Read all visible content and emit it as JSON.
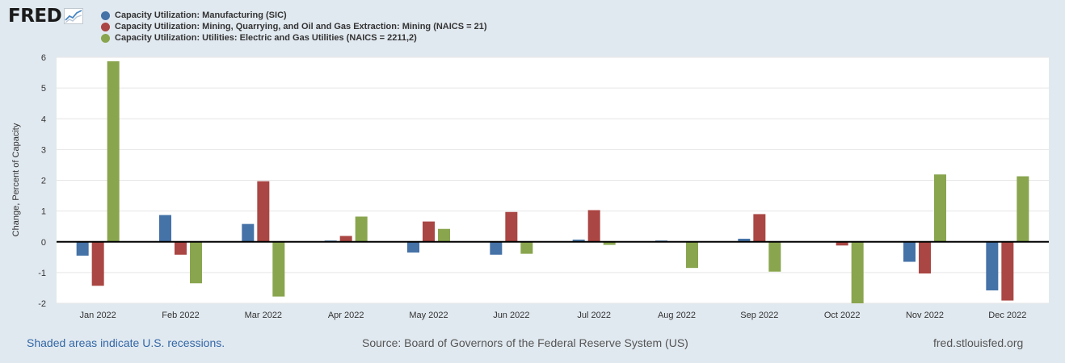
{
  "logo": {
    "text": "FRED"
  },
  "footer": {
    "recession_note": "Shaded areas indicate U.S. recessions.",
    "source": "Source: Board of Governors of the Federal Reserve System (US)",
    "site": "fred.stlouisfed.org"
  },
  "chart_data": {
    "type": "bar",
    "title": "",
    "xlabel": "",
    "ylabel": "Change, Percent of Capacity",
    "ylim": [
      -2,
      6
    ],
    "yticks": [
      6,
      5,
      4,
      3,
      2,
      1,
      0,
      -1,
      -2
    ],
    "ytick_labels": [
      "6",
      "5",
      "4",
      "3",
      "2",
      "1",
      "0",
      "-1",
      "-2"
    ],
    "grid": true,
    "legend_position": "top-left",
    "categories": [
      "Jan 2022",
      "Feb 2022",
      "Mar 2022",
      "Apr 2022",
      "May 2022",
      "Jun 2022",
      "Jul 2022",
      "Aug 2022",
      "Sep 2022",
      "Oct 2022",
      "Nov 2022",
      "Dec 2022"
    ],
    "series": [
      {
        "name": "Capacity Utilization: Manufacturing (SIC)",
        "color": "#4572a7",
        "values": [
          -0.45,
          0.87,
          0.58,
          0.04,
          -0.35,
          -0.42,
          0.07,
          0.04,
          0.1,
          0.0,
          -0.65,
          -1.58
        ]
      },
      {
        "name": "Capacity Utilization: Mining, Quarrying, and Oil and Gas Extraction: Mining (NAICS = 21)",
        "color": "#aa4643",
        "values": [
          -1.43,
          -0.42,
          1.97,
          0.19,
          0.66,
          0.97,
          1.03,
          0.0,
          0.9,
          -0.12,
          -1.03,
          -1.91
        ]
      },
      {
        "name": "Capacity Utilization: Utilities: Electric and Gas Utilities (NAICS = 2211,2)",
        "color": "#89a54e",
        "values": [
          5.87,
          -1.35,
          -1.78,
          0.82,
          0.42,
          -0.39,
          -0.1,
          -0.85,
          -0.97,
          -2.0,
          2.19,
          2.13
        ]
      }
    ]
  }
}
